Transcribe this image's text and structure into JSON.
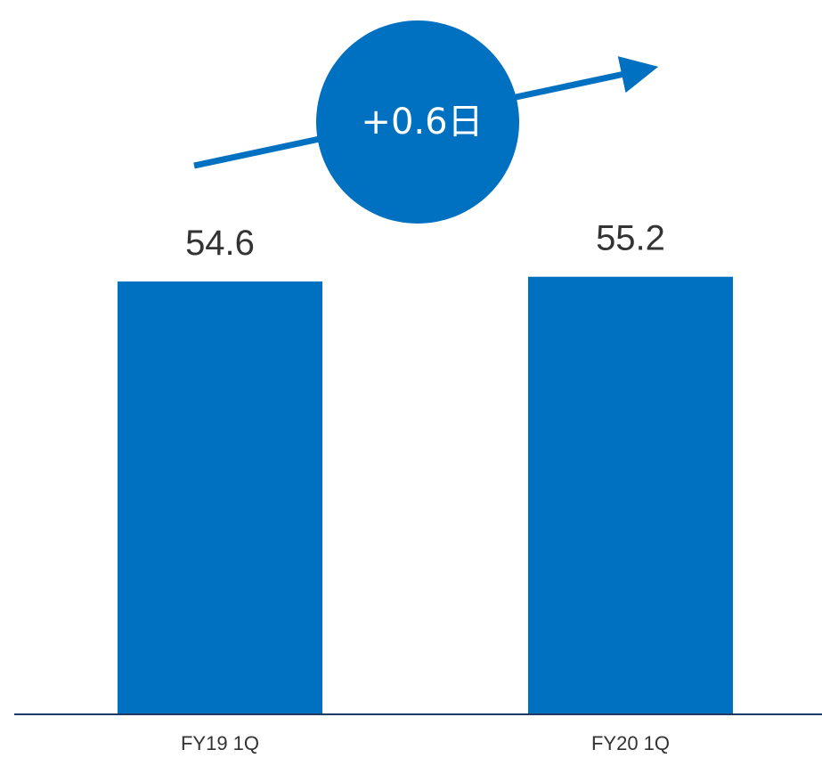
{
  "colors": {
    "bar": "#0070C0",
    "axis": "#203864",
    "text": "#333333",
    "badge_text": "#ffffff",
    "background": "#ffffff"
  },
  "chart_data": {
    "type": "bar",
    "title": "",
    "xlabel": "",
    "ylabel": "",
    "categories": [
      "FY19 1Q",
      "FY20 1Q"
    ],
    "values": [
      54.6,
      55.2
    ],
    "data_labels": [
      "54.6",
      "55.2"
    ],
    "grid": false,
    "legend": "none",
    "annotation": {
      "text": "+0.6日",
      "shape": "circle",
      "arrow": "trend-up"
    }
  }
}
